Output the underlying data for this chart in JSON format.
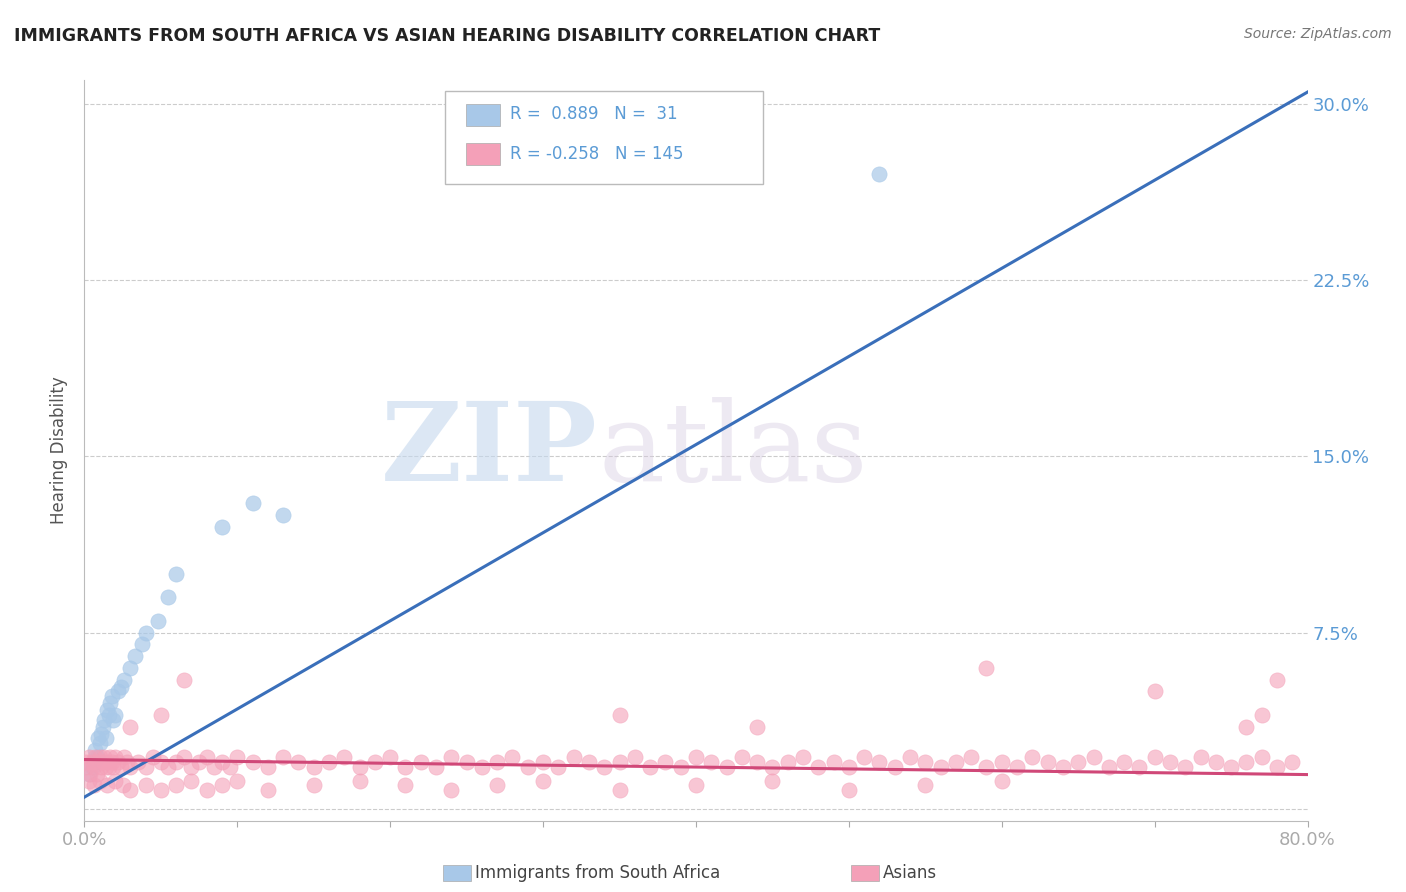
{
  "title": "IMMIGRANTS FROM SOUTH AFRICA VS ASIAN HEARING DISABILITY CORRELATION CHART",
  "source": "Source: ZipAtlas.com",
  "ylabel": "Hearing Disability",
  "xlim": [
    0.0,
    0.8
  ],
  "ylim": [
    -0.005,
    0.31
  ],
  "yticks": [
    0.0,
    0.075,
    0.15,
    0.225,
    0.3
  ],
  "ytick_labels": [
    "",
    "7.5%",
    "15.0%",
    "22.5%",
    "30.0%"
  ],
  "xtick_labels": [
    "0.0%",
    "",
    "",
    "",
    "",
    "",
    "",
    "",
    "80.0%"
  ],
  "blue_color": "#a8c8e8",
  "pink_color": "#f4a0b8",
  "blue_line_color": "#3a6fba",
  "pink_line_color": "#d04878",
  "watermark_zip": "ZIP",
  "watermark_atlas": "atlas",
  "title_fontsize": 12.5,
  "axis_label_color": "#5b9bd5",
  "legend_text_color": "#333333",
  "background_color": "#ffffff",
  "grid_color": "#cccccc",
  "blue_scatter_x": [
    0.003,
    0.005,
    0.006,
    0.007,
    0.008,
    0.009,
    0.01,
    0.011,
    0.012,
    0.013,
    0.014,
    0.015,
    0.016,
    0.017,
    0.018,
    0.019,
    0.02,
    0.022,
    0.024,
    0.026,
    0.03,
    0.033,
    0.038,
    0.04,
    0.048,
    0.055,
    0.06,
    0.09,
    0.11,
    0.13,
    0.52
  ],
  "blue_scatter_y": [
    0.015,
    0.018,
    0.02,
    0.025,
    0.022,
    0.03,
    0.028,
    0.032,
    0.035,
    0.038,
    0.03,
    0.042,
    0.04,
    0.045,
    0.048,
    0.038,
    0.04,
    0.05,
    0.052,
    0.055,
    0.06,
    0.065,
    0.07,
    0.075,
    0.08,
    0.09,
    0.1,
    0.12,
    0.13,
    0.125,
    0.27
  ],
  "pink_scatter_x": [
    0.001,
    0.002,
    0.003,
    0.004,
    0.005,
    0.006,
    0.007,
    0.008,
    0.009,
    0.01,
    0.011,
    0.012,
    0.013,
    0.014,
    0.015,
    0.016,
    0.017,
    0.018,
    0.019,
    0.02,
    0.022,
    0.024,
    0.026,
    0.028,
    0.03,
    0.035,
    0.04,
    0.045,
    0.05,
    0.055,
    0.06,
    0.065,
    0.07,
    0.075,
    0.08,
    0.085,
    0.09,
    0.095,
    0.1,
    0.11,
    0.12,
    0.13,
    0.14,
    0.15,
    0.16,
    0.17,
    0.18,
    0.19,
    0.2,
    0.21,
    0.22,
    0.23,
    0.24,
    0.25,
    0.26,
    0.27,
    0.28,
    0.29,
    0.3,
    0.31,
    0.32,
    0.33,
    0.34,
    0.35,
    0.36,
    0.37,
    0.38,
    0.39,
    0.4,
    0.41,
    0.42,
    0.43,
    0.44,
    0.45,
    0.46,
    0.47,
    0.48,
    0.49,
    0.5,
    0.51,
    0.52,
    0.53,
    0.54,
    0.55,
    0.56,
    0.57,
    0.58,
    0.59,
    0.6,
    0.61,
    0.62,
    0.63,
    0.64,
    0.65,
    0.66,
    0.67,
    0.68,
    0.69,
    0.7,
    0.71,
    0.72,
    0.73,
    0.74,
    0.75,
    0.76,
    0.77,
    0.78,
    0.79,
    0.003,
    0.006,
    0.01,
    0.015,
    0.02,
    0.025,
    0.03,
    0.04,
    0.05,
    0.06,
    0.07,
    0.08,
    0.09,
    0.1,
    0.12,
    0.15,
    0.18,
    0.21,
    0.24,
    0.27,
    0.3,
    0.35,
    0.4,
    0.45,
    0.5,
    0.55,
    0.6,
    0.03,
    0.05,
    0.065,
    0.35,
    0.44,
    0.59,
    0.7,
    0.76,
    0.77,
    0.78
  ],
  "pink_scatter_y": [
    0.02,
    0.018,
    0.022,
    0.015,
    0.02,
    0.018,
    0.022,
    0.015,
    0.02,
    0.022,
    0.018,
    0.02,
    0.022,
    0.018,
    0.02,
    0.018,
    0.022,
    0.02,
    0.018,
    0.022,
    0.02,
    0.018,
    0.022,
    0.02,
    0.018,
    0.02,
    0.018,
    0.022,
    0.02,
    0.018,
    0.02,
    0.022,
    0.018,
    0.02,
    0.022,
    0.018,
    0.02,
    0.018,
    0.022,
    0.02,
    0.018,
    0.022,
    0.02,
    0.018,
    0.02,
    0.022,
    0.018,
    0.02,
    0.022,
    0.018,
    0.02,
    0.018,
    0.022,
    0.02,
    0.018,
    0.02,
    0.022,
    0.018,
    0.02,
    0.018,
    0.022,
    0.02,
    0.018,
    0.02,
    0.022,
    0.018,
    0.02,
    0.018,
    0.022,
    0.02,
    0.018,
    0.022,
    0.02,
    0.018,
    0.02,
    0.022,
    0.018,
    0.02,
    0.018,
    0.022,
    0.02,
    0.018,
    0.022,
    0.02,
    0.018,
    0.02,
    0.022,
    0.018,
    0.02,
    0.018,
    0.022,
    0.02,
    0.018,
    0.02,
    0.022,
    0.018,
    0.02,
    0.018,
    0.022,
    0.02,
    0.018,
    0.022,
    0.02,
    0.018,
    0.02,
    0.022,
    0.018,
    0.02,
    0.012,
    0.01,
    0.012,
    0.01,
    0.012,
    0.01,
    0.008,
    0.01,
    0.008,
    0.01,
    0.012,
    0.008,
    0.01,
    0.012,
    0.008,
    0.01,
    0.012,
    0.01,
    0.008,
    0.01,
    0.012,
    0.008,
    0.01,
    0.012,
    0.008,
    0.01,
    0.012,
    0.035,
    0.04,
    0.055,
    0.04,
    0.035,
    0.06,
    0.05,
    0.035,
    0.04,
    0.055
  ]
}
